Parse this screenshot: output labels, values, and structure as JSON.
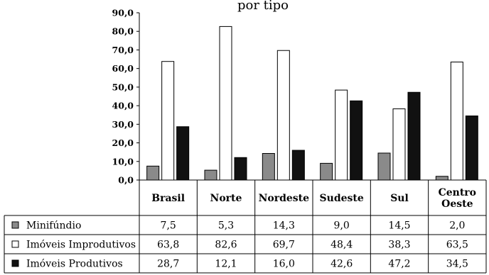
{
  "chart_data": {
    "type": "bar",
    "categories": [
      "Brasil",
      "Norte",
      "Nordeste",
      "Sudeste",
      "Sul",
      "Centro Oeste"
    ],
    "category_lines": [
      [
        "Brasil"
      ],
      [
        "Norte"
      ],
      [
        "Nordeste"
      ],
      [
        "Sudeste"
      ],
      [
        "Sul"
      ],
      [
        "Centro",
        "Oeste"
      ]
    ],
    "series": [
      {
        "name": "Minifúndio",
        "color": "#8a8a8a",
        "values": [
          7.5,
          5.3,
          14.3,
          9.0,
          14.5,
          2.0
        ],
        "labels": [
          "7,5",
          "5,3",
          "14,3",
          "9,0",
          "14,5",
          "2,0"
        ]
      },
      {
        "name": "Imóveis Improdutivos",
        "color": "#ffffff",
        "values": [
          63.8,
          82.6,
          69.7,
          48.4,
          38.3,
          63.5
        ],
        "labels": [
          "63,8",
          "82,6",
          "69,7",
          "48,4",
          "38,3",
          "63,5"
        ]
      },
      {
        "name": "Imóveis Produtivos",
        "color": "#111111",
        "values": [
          28.7,
          12.1,
          16.0,
          42.6,
          47.2,
          34.5
        ],
        "labels": [
          "28,7",
          "12,1",
          "16,0",
          "42,6",
          "47,2",
          "34,5"
        ]
      }
    ],
    "ylim": [
      0,
      90
    ],
    "yticks": [
      0,
      10,
      20,
      30,
      40,
      50,
      60,
      70,
      80,
      90
    ],
    "ytick_labels": [
      "0,0",
      "10,0",
      "20,0",
      "30,0",
      "40,0",
      "50,0",
      "60,0",
      "70,0",
      "80,0",
      "90,0"
    ],
    "title": "por tipo",
    "grid": false,
    "legend": "data-table"
  }
}
